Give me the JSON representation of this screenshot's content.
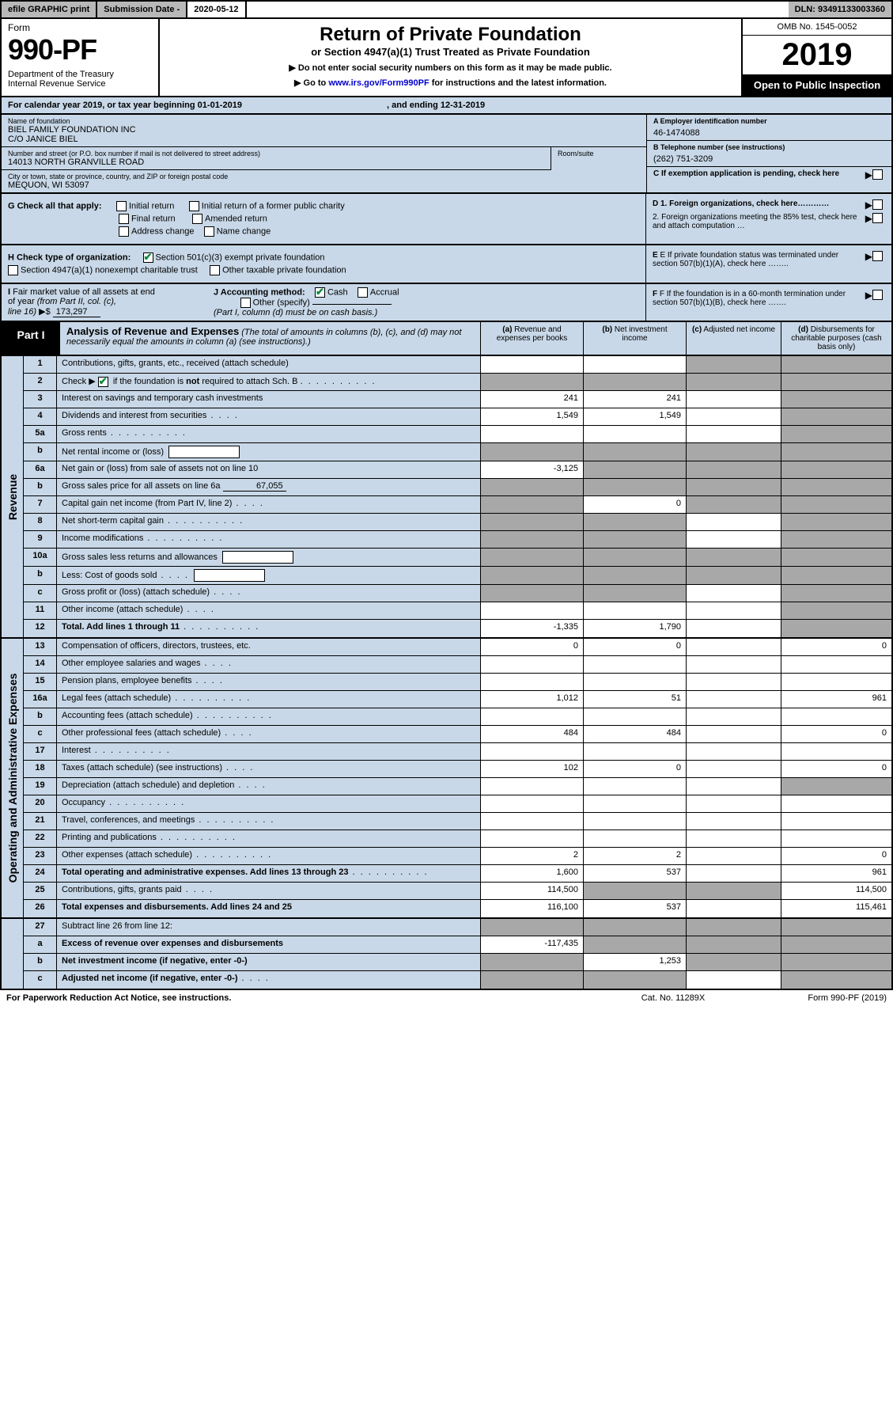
{
  "topbar": {
    "efile": "efile GRAPHIC print",
    "subdate_label": "Submission Date - ",
    "subdate": "2020-05-12",
    "dln_label": "DLN: ",
    "dln": "93491133003360"
  },
  "header": {
    "form_word": "Form",
    "form_no": "990-PF",
    "dept": "Department of the Treasury\nInternal Revenue Service",
    "title": "Return of Private Foundation",
    "subtitle": "or Section 4947(a)(1) Trust Treated as Private Foundation",
    "note1": "▶ Do not enter social security numbers on this form as it may be made public.",
    "note2": "▶ Go to www.irs.gov/Form990PF for instructions and the latest information.",
    "link": "www.irs.gov/Form990PF",
    "omb": "OMB No. 1545-0052",
    "year": "2019",
    "open": "Open to Public Inspection"
  },
  "calendar": {
    "prefix": "For calendar year 2019, or tax year beginning ",
    "begin": "01-01-2019",
    "mid": " , and ending ",
    "end": "12-31-2019"
  },
  "entity": {
    "name_label": "Name of foundation",
    "name": "BIEL FAMILY FOUNDATION INC",
    "care_of": "C/O JANICE BIEL",
    "street_label": "Number and street (or P.O. box number if mail is not delivered to street address)",
    "street": "14013 NORTH GRANVILLE ROAD",
    "room_label": "Room/suite",
    "room": "",
    "city_label": "City or town, state or province, country, and ZIP or foreign postal code",
    "city": "MEQUON, WI  53097",
    "ein_label": "A Employer identification number",
    "ein": "46-1474088",
    "phone_label": "B Telephone number (see instructions)",
    "phone": "(262) 751-3209",
    "c_label": "C If exemption application is pending, check here"
  },
  "checks": {
    "g_label": "G Check all that apply:",
    "g_items": [
      "Initial return",
      "Initial return of a former public charity",
      "Final return",
      "Amended return",
      "Address change",
      "Name change"
    ],
    "h_label": "H Check type of organization:",
    "h_items": [
      "Section 501(c)(3) exempt private foundation",
      "Section 4947(a)(1) nonexempt charitable trust",
      "Other taxable private foundation"
    ],
    "h_checked": 0,
    "i_label": "I Fair market value of all assets at end of year (from Part II, col. (c), line 16) ▶$",
    "i_value": "173,297",
    "j_label": "J Accounting method:",
    "j_items": [
      "Cash",
      "Accrual",
      "Other (specify)"
    ],
    "j_checked": 0,
    "j_note": "(Part I, column (d) must be on cash basis.)",
    "d1": "D 1. Foreign organizations, check here…………",
    "d2": "2. Foreign organizations meeting the 85% test, check here and attach computation …",
    "e": "E If private foundation status was terminated under section 507(b)(1)(A), check here ……..",
    "f": "F If the foundation is in a 60-month termination under section 507(b)(1)(B), check here ……."
  },
  "part1": {
    "tab": "Part I",
    "title": "Analysis of Revenue and Expenses",
    "note": "(The total of amounts in columns (b), (c), and (d) may not necessarily equal the amounts in column (a) (see instructions).)",
    "cols": {
      "a": "(a) Revenue and expenses per books",
      "b": "(b) Net investment income",
      "c": "(c) Adjusted net income",
      "d": "(d) Disbursements for charitable purposes (cash basis only)"
    }
  },
  "sections": {
    "revenue": "Revenue",
    "expenses": "Operating and Administrative Expenses"
  },
  "rows": {
    "r1": {
      "num": "1",
      "desc": "Contributions, gifts, grants, etc., received (attach schedule)",
      "a": "",
      "b": "",
      "c": "shade",
      "d": "shade"
    },
    "r2": {
      "num": "2",
      "desc": "Check ▶ ✔ if the foundation is not required to attach Sch. B",
      "a": "shade",
      "b": "shade",
      "c": "shade",
      "d": "shade",
      "nocell": true
    },
    "r3": {
      "num": "3",
      "desc": "Interest on savings and temporary cash investments",
      "a": "241",
      "b": "241",
      "c": "",
      "d": "shade"
    },
    "r4": {
      "num": "4",
      "desc": "Dividends and interest from securities",
      "a": "1,549",
      "b": "1,549",
      "c": "",
      "d": "shade",
      "dotsShort": true
    },
    "r5a": {
      "num": "5a",
      "desc": "Gross rents",
      "a": "",
      "b": "",
      "c": "",
      "d": "shade",
      "dots": true
    },
    "r5b": {
      "num": "b",
      "desc": "Net rental income or (loss)",
      "a": "shade",
      "b": "shade",
      "c": "shade",
      "d": "shade",
      "box": true
    },
    "r6a": {
      "num": "6a",
      "desc": "Net gain or (loss) from sale of assets not on line 10",
      "a": "-3,125",
      "b": "shade",
      "c": "shade",
      "d": "shade"
    },
    "r6b": {
      "num": "b",
      "desc": "Gross sales price for all assets on line 6a",
      "a": "shade",
      "b": "shade",
      "c": "shade",
      "d": "shade",
      "under": "67,055"
    },
    "r7": {
      "num": "7",
      "desc": "Capital gain net income (from Part IV, line 2)",
      "a": "shade",
      "b": "0",
      "c": "shade",
      "d": "shade",
      "dotsShort": true
    },
    "r8": {
      "num": "8",
      "desc": "Net short-term capital gain",
      "a": "shade",
      "b": "shade",
      "c": "",
      "d": "shade",
      "dots": true
    },
    "r9": {
      "num": "9",
      "desc": "Income modifications",
      "a": "shade",
      "b": "shade",
      "c": "",
      "d": "shade",
      "dots": true
    },
    "r10a": {
      "num": "10a",
      "desc": "Gross sales less returns and allowances",
      "a": "shade",
      "b": "shade",
      "c": "shade",
      "d": "shade",
      "box": true
    },
    "r10b": {
      "num": "b",
      "desc": "Less: Cost of goods sold",
      "a": "shade",
      "b": "shade",
      "c": "shade",
      "d": "shade",
      "box": true,
      "dotsShort": true
    },
    "r10c": {
      "num": "c",
      "desc": "Gross profit or (loss) (attach schedule)",
      "a": "shade",
      "b": "shade",
      "c": "",
      "d": "shade",
      "dotsShort": true
    },
    "r11": {
      "num": "11",
      "desc": "Other income (attach schedule)",
      "a": "",
      "b": "",
      "c": "",
      "d": "shade",
      "dotsShort": true
    },
    "r12": {
      "num": "12",
      "desc": "Total. Add lines 1 through 11",
      "a": "-1,335",
      "b": "1,790",
      "c": "",
      "d": "shade",
      "bold": true,
      "dots": true
    },
    "r13": {
      "num": "13",
      "desc": "Compensation of officers, directors, trustees, etc.",
      "a": "0",
      "b": "0",
      "c": "",
      "d": "0"
    },
    "r14": {
      "num": "14",
      "desc": "Other employee salaries and wages",
      "a": "",
      "b": "",
      "c": "",
      "d": "",
      "dotsShort": true
    },
    "r15": {
      "num": "15",
      "desc": "Pension plans, employee benefits",
      "a": "",
      "b": "",
      "c": "",
      "d": "",
      "dotsShort": true
    },
    "r16a": {
      "num": "16a",
      "desc": "Legal fees (attach schedule)",
      "a": "1,012",
      "b": "51",
      "c": "",
      "d": "961",
      "dots": true
    },
    "r16b": {
      "num": "b",
      "desc": "Accounting fees (attach schedule)",
      "a": "",
      "b": "",
      "c": "",
      "d": "",
      "dots": true
    },
    "r16c": {
      "num": "c",
      "desc": "Other professional fees (attach schedule)",
      "a": "484",
      "b": "484",
      "c": "",
      "d": "0",
      "dotsShort": true
    },
    "r17": {
      "num": "17",
      "desc": "Interest",
      "a": "",
      "b": "",
      "c": "",
      "d": "",
      "dots": true
    },
    "r18": {
      "num": "18",
      "desc": "Taxes (attach schedule) (see instructions)",
      "a": "102",
      "b": "0",
      "c": "",
      "d": "0",
      "dotsShort": true
    },
    "r19": {
      "num": "19",
      "desc": "Depreciation (attach schedule) and depletion",
      "a": "",
      "b": "",
      "c": "",
      "d": "shade",
      "dotsShort": true
    },
    "r20": {
      "num": "20",
      "desc": "Occupancy",
      "a": "",
      "b": "",
      "c": "",
      "d": "",
      "dots": true
    },
    "r21": {
      "num": "21",
      "desc": "Travel, conferences, and meetings",
      "a": "",
      "b": "",
      "c": "",
      "d": "",
      "dots": true
    },
    "r22": {
      "num": "22",
      "desc": "Printing and publications",
      "a": "",
      "b": "",
      "c": "",
      "d": "",
      "dots": true
    },
    "r23": {
      "num": "23",
      "desc": "Other expenses (attach schedule)",
      "a": "2",
      "b": "2",
      "c": "",
      "d": "0",
      "dots": true
    },
    "r24": {
      "num": "24",
      "desc": "Total operating and administrative expenses. Add lines 13 through 23",
      "a": "1,600",
      "b": "537",
      "c": "",
      "d": "961",
      "bold": true,
      "dots": true
    },
    "r25": {
      "num": "25",
      "desc": "Contributions, gifts, grants paid",
      "a": "114,500",
      "b": "shade",
      "c": "shade",
      "d": "114,500",
      "dotsShort": true
    },
    "r26": {
      "num": "26",
      "desc": "Total expenses and disbursements. Add lines 24 and 25",
      "a": "116,100",
      "b": "537",
      "c": "",
      "d": "115,461",
      "bold": true
    },
    "r27": {
      "num": "27",
      "desc": "Subtract line 26 from line 12:",
      "a": "shade",
      "b": "shade",
      "c": "shade",
      "d": "shade"
    },
    "r27a": {
      "num": "a",
      "desc": "Excess of revenue over expenses and disbursements",
      "a": "-117,435",
      "b": "shade",
      "c": "shade",
      "d": "shade",
      "bold": true
    },
    "r27b": {
      "num": "b",
      "desc": "Net investment income (if negative, enter -0-)",
      "a": "shade",
      "b": "1,253",
      "c": "shade",
      "d": "shade",
      "bold": true
    },
    "r27c": {
      "num": "c",
      "desc": "Adjusted net income (if negative, enter -0-)",
      "a": "shade",
      "b": "shade",
      "c": "",
      "d": "shade",
      "bold": true,
      "dotsShort": true
    }
  },
  "footer": {
    "left": "For Paperwork Reduction Act Notice, see instructions.",
    "mid": "Cat. No. 11289X",
    "right": "Form 990-PF (2019)"
  },
  "colors": {
    "blue_bg": "#c8d8e8",
    "gray_bg": "#b8b8b8",
    "shade": "#a8a8a8",
    "link": "#0000cc",
    "check": "#0a8a3a"
  }
}
